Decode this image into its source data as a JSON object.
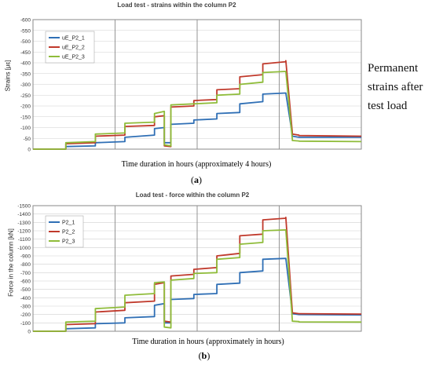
{
  "side_note": [
    "Permanent",
    "strains after",
    "test load"
  ],
  "panels": [
    {
      "title": "Load test - strains within the column  P2",
      "ylabel": "Strains [μɛ]",
      "xlabel": "Time duration in hours (approximately 4 hours)",
      "panel_label": "a"
    },
    {
      "title": "Load test - force within the column  P2",
      "ylabel": "Force in the column [kN]",
      "xlabel": "Time duration in hours (approximately in hours)",
      "panel_label": "b"
    }
  ],
  "colors": {
    "series1": "#2f6fb5",
    "series2": "#c0392b",
    "series3": "#8fbc3a",
    "grid": "#d0d0d0",
    "axis": "#8a8a8a"
  },
  "chart_data": [
    {
      "type": "line",
      "title": "Load test - strains within the column  P2",
      "xlabel": "Time duration in hours (approximately 4 hours)",
      "ylabel": "Strains [μɛ]",
      "y_inverted": true,
      "ylim": [
        0,
        -600
      ],
      "yticks": [
        0,
        -50,
        -100,
        -150,
        -200,
        -250,
        -300,
        -350,
        -400,
        -450,
        -500,
        -550,
        -600
      ],
      "xlim": [
        0,
        100
      ],
      "grid": true,
      "legend": "top-left",
      "x": [
        0,
        10,
        10,
        19,
        19,
        28,
        28,
        37,
        37,
        40,
        40,
        42,
        42,
        49,
        49,
        56,
        56,
        63,
        63,
        70,
        70,
        77,
        77,
        79,
        79,
        81,
        81,
        100
      ],
      "series": [
        {
          "name": "uE_P2_1",
          "values": [
            0,
            0,
            -12,
            -15,
            -30,
            -35,
            -55,
            -65,
            -95,
            -100,
            -30,
            -30,
            -115,
            -120,
            -135,
            -140,
            -165,
            -170,
            -210,
            -220,
            -255,
            -260,
            -260,
            -65,
            -60,
            -55,
            -55,
            -55
          ]
        },
        {
          "name": "uE_P2_2",
          "values": [
            0,
            0,
            -25,
            -30,
            -60,
            -65,
            -105,
            -110,
            -150,
            -155,
            -15,
            -12,
            -195,
            -200,
            -225,
            -230,
            -275,
            -280,
            -335,
            -345,
            -395,
            -405,
            -410,
            -75,
            -70,
            -65,
            -63,
            -60
          ]
        },
        {
          "name": "uE_P2_3",
          "values": [
            0,
            0,
            -30,
            -35,
            -70,
            -75,
            -120,
            -125,
            -165,
            -175,
            -20,
            -15,
            -205,
            -210,
            -210,
            -215,
            -250,
            -255,
            -300,
            -310,
            -355,
            -360,
            -360,
            -45,
            -40,
            -38,
            -37,
            -35
          ]
        }
      ]
    },
    {
      "type": "line",
      "title": "Load test - force within the column  P2",
      "xlabel": "Time duration in hours (approximately in hours)",
      "ylabel": "Force in the column [kN]",
      "y_inverted": true,
      "ylim": [
        0,
        -1500
      ],
      "yticks": [
        0,
        -100,
        -200,
        -300,
        -400,
        -500,
        -600,
        -700,
        -800,
        -900,
        -1000,
        -1100,
        -1200,
        -1300,
        -1400,
        -1500
      ],
      "xlim": [
        0,
        100
      ],
      "grid": true,
      "legend": "top-left",
      "x": [
        0,
        10,
        10,
        19,
        19,
        28,
        28,
        37,
        37,
        40,
        40,
        42,
        42,
        49,
        49,
        56,
        56,
        63,
        63,
        70,
        70,
        77,
        77,
        79,
        79,
        81,
        81,
        100
      ],
      "series": [
        {
          "name": "P2_1",
          "values": [
            0,
            0,
            -30,
            -40,
            -90,
            -100,
            -160,
            -175,
            -310,
            -330,
            -100,
            -100,
            -380,
            -390,
            -440,
            -450,
            -560,
            -575,
            -700,
            -720,
            -860,
            -870,
            -870,
            -220,
            -210,
            -200,
            -200,
            -195
          ]
        },
        {
          "name": "P2_2",
          "values": [
            0,
            0,
            -80,
            -90,
            -230,
            -250,
            -340,
            -360,
            -560,
            -580,
            -120,
            -110,
            -660,
            -680,
            -740,
            -760,
            -900,
            -930,
            -1140,
            -1160,
            -1330,
            -1350,
            -1360,
            -230,
            -220,
            -210,
            -210,
            -205
          ]
        },
        {
          "name": "P2_3",
          "values": [
            0,
            0,
            -110,
            -120,
            -270,
            -290,
            -430,
            -450,
            -580,
            -590,
            -50,
            -40,
            -610,
            -630,
            -690,
            -700,
            -860,
            -880,
            -1040,
            -1060,
            -1200,
            -1210,
            -1210,
            -130,
            -120,
            -115,
            -112,
            -110
          ]
        }
      ]
    }
  ]
}
